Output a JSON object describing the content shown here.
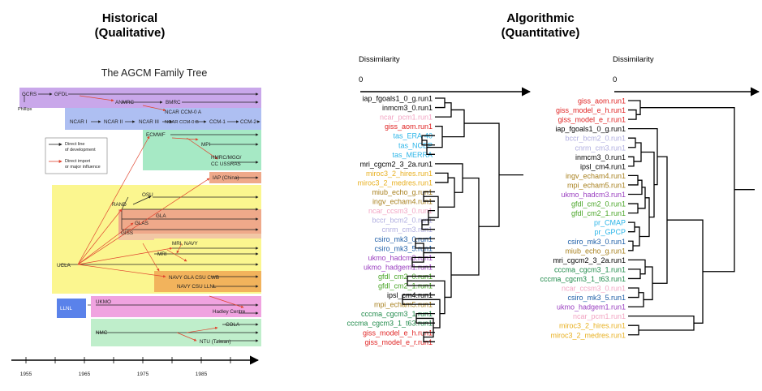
{
  "headers": {
    "historical": {
      "line1": "Historical",
      "line2": "(Qualitative)"
    },
    "algorithmic": {
      "line1": "Algorithmic",
      "line2": "(Quantitative)"
    }
  },
  "tree": {
    "title": "The AGCM Family Tree",
    "labels": {
      "gcrs": "GCRS",
      "phillips": "Phillips",
      "gfdl": "GFDL",
      "anmrc": "ANMRC",
      "bmrc": "BMRC",
      "ncar_ccm0a": "NCAR CCM-0 A",
      "ncar1": "NCAR I",
      "ncar2": "NCAR II",
      "ncar3": "NCAR III",
      "ncar_ccm0b": "NCAR CCM-0 B",
      "ccm1": "CCM-1",
      "ccm2": "CCM-2",
      "ecmwf": "ECMWF",
      "mpi": "MPI",
      "hmrc1": "HMRC/MGO/",
      "hmrc2": "CC USSRAS",
      "iap": "IAP (China)",
      "osu": "OSU",
      "rand": "RAND",
      "gla": "GLA",
      "glas": "GLAS",
      "giss": "GISS",
      "mri_navy": "MRI, NAVY",
      "mri": "MRI",
      "navy_gla": "NAVY GLA CSU CWB",
      "navy_csu": "NAVY CSU LLNL",
      "ucla": "UCLA",
      "llnl": "LLNL",
      "ukmo": "UKMO",
      "hadley": "Hadley Centre",
      "nmc": "NMC",
      "cola": "COLA",
      "ntu": "NTU (Taiwan)"
    },
    "legend": {
      "direct1": "Direct line",
      "direct2": "of development",
      "import1": "Direct import",
      "import2": "or major influence"
    },
    "axis": [
      "1955",
      "1965",
      "1975",
      "1985"
    ],
    "colors": {
      "purple": "#c9a7ea",
      "blue": "#aebff2",
      "green": "#a6e9c5",
      "salmon": "#efa98a",
      "yellow": "#fbf68f",
      "orange": "#f2b35c",
      "pink": "#f0a3e0",
      "llnl": "#5a82ea",
      "nmc": "#bfeecb",
      "arrow_red": "#e0452f"
    }
  },
  "dendro1": {
    "axis_label": "Dissimilarity",
    "zero": "0",
    "leaves": [
      {
        "label": "iap_fgoals1_0_g.run1",
        "color": "#000000"
      },
      {
        "label": "inmcm3_0.run1",
        "color": "#000000"
      },
      {
        "label": "ncar_pcm1.run1",
        "color": "#f2a5c3"
      },
      {
        "label": "giss_aom.run1",
        "color": "#e02424"
      },
      {
        "label": "tas_ERA-40",
        "color": "#2bb5e8"
      },
      {
        "label": "tas_NCEP",
        "color": "#2bb5e8"
      },
      {
        "label": "tas_MERRA",
        "color": "#2bb5e8"
      },
      {
        "label": "mri_cgcm2_3_2a.run1",
        "color": "#000000"
      },
      {
        "label": "miroc3_2_hires.run1",
        "color": "#e8b020"
      },
      {
        "label": "miroc3_2_medres.run1",
        "color": "#e8b020"
      },
      {
        "label": "miub_echo_g.run1",
        "color": "#a8801e"
      },
      {
        "label": "ingv_echam4.run1",
        "color": "#a8801e"
      },
      {
        "label": "ncar_ccsm3_0.run1",
        "color": "#f2a5c3"
      },
      {
        "label": "bccr_bcm2_0.run1",
        "color": "#b0aee0"
      },
      {
        "label": "cnrm_cm3.run1",
        "color": "#b0aee0"
      },
      {
        "label": "csiro_mk3_0.run1",
        "color": "#1f5fa8"
      },
      {
        "label": "csiro_mk3_5.run1",
        "color": "#1f5fa8"
      },
      {
        "label": "ukmo_hadcm3.run1",
        "color": "#9a3fc0"
      },
      {
        "label": "ukmo_hadgem1.run1",
        "color": "#9a3fc0"
      },
      {
        "label": "gfdl_cm2_0.run1",
        "color": "#4aa628"
      },
      {
        "label": "gfdl_cm2_1.run1",
        "color": "#4aa628"
      },
      {
        "label": "ipsl_cm4.run1",
        "color": "#000000"
      },
      {
        "label": "mpi_echam5.run1",
        "color": "#a8801e"
      },
      {
        "label": "cccma_cgcm3_1.run1",
        "color": "#1f8a4a"
      },
      {
        "label": "cccma_cgcm3_1_t63.run1",
        "color": "#1f8a4a"
      },
      {
        "label": "giss_model_e_h.run1",
        "color": "#e02424"
      },
      {
        "label": "giss_model_e_r.run1",
        "color": "#e02424"
      }
    ]
  },
  "dendro2": {
    "axis_label": "Dissimilarity",
    "zero": "0",
    "leaves": [
      {
        "label": "giss_aom.run1",
        "color": "#e02424"
      },
      {
        "label": "giss_model_e_h.run1",
        "color": "#e02424"
      },
      {
        "label": "giss_model_e_r.run1",
        "color": "#e02424"
      },
      {
        "label": "iap_fgoals1_0_g.run1",
        "color": "#000000"
      },
      {
        "label": "bccr_bcm2_0.run1",
        "color": "#b0aee0"
      },
      {
        "label": "cnrm_cm3.run1",
        "color": "#b0aee0"
      },
      {
        "label": "inmcm3_0.run1",
        "color": "#000000"
      },
      {
        "label": "ipsl_cm4.run1",
        "color": "#000000"
      },
      {
        "label": "ingv_echam4.run1",
        "color": "#a8801e"
      },
      {
        "label": "mpi_echam5.run1",
        "color": "#a8801e"
      },
      {
        "label": "ukmo_hadcm3.run1",
        "color": "#9a3fc0"
      },
      {
        "label": "gfdl_cm2_0.run1",
        "color": "#4aa628"
      },
      {
        "label": "gfdl_cm2_1.run1",
        "color": "#4aa628"
      },
      {
        "label": "pr_CMAP",
        "color": "#2bb5e8"
      },
      {
        "label": "pr_GPCP",
        "color": "#2bb5e8"
      },
      {
        "label": "csiro_mk3_0.run1",
        "color": "#1f5fa8"
      },
      {
        "label": "miub_echo_g.run1",
        "color": "#a8801e"
      },
      {
        "label": "mri_cgcm2_3_2a.run1",
        "color": "#000000"
      },
      {
        "label": "cccma_cgcm3_1.run1",
        "color": "#1f8a4a"
      },
      {
        "label": "cccma_cgcm3_1_t63.run1",
        "color": "#1f8a4a"
      },
      {
        "label": "ncar_ccsm3_0.run1",
        "color": "#f2a5c3"
      },
      {
        "label": "csiro_mk3_5.run1",
        "color": "#1f5fa8"
      },
      {
        "label": "ukmo_hadgem1.run1",
        "color": "#9a3fc0"
      },
      {
        "label": "ncar_pcm1.run1",
        "color": "#f2a5c3"
      },
      {
        "label": "miroc3_2_hires.run1",
        "color": "#e8b020"
      },
      {
        "label": "miroc3_2_medres.run1",
        "color": "#e8b020"
      }
    ]
  }
}
